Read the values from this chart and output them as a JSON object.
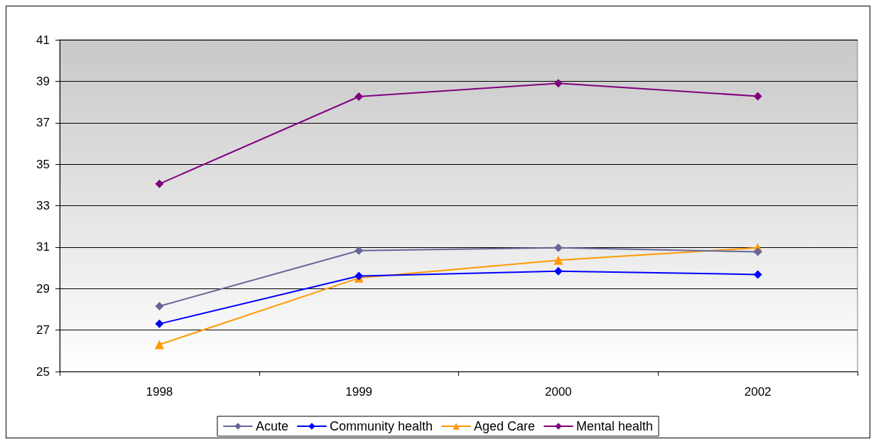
{
  "chart_data": {
    "type": "line",
    "categories": [
      "1998",
      "1999",
      "2000",
      "2002"
    ],
    "series": [
      {
        "name": "Acute",
        "color": "#666699",
        "marker": "diamond",
        "values": [
          28.15,
          30.83,
          30.97,
          30.77
        ]
      },
      {
        "name": "Community health",
        "color": "#0000ff",
        "marker": "diamond",
        "values": [
          27.3,
          29.61,
          29.84,
          29.68
        ]
      },
      {
        "name": "Aged Care",
        "color": "#ff9900",
        "marker": "triangle",
        "values": [
          26.3,
          29.51,
          30.37,
          30.97
        ]
      },
      {
        "name": "Mental health",
        "color": "#800080",
        "marker": "diamond",
        "values": [
          34.05,
          38.26,
          38.9,
          38.28
        ]
      }
    ],
    "ylim": [
      25,
      41
    ],
    "yticks": [
      25,
      27,
      29,
      31,
      33,
      35,
      37,
      39,
      41
    ],
    "grid": "y",
    "legend": "bottom",
    "line_style": "solid"
  }
}
